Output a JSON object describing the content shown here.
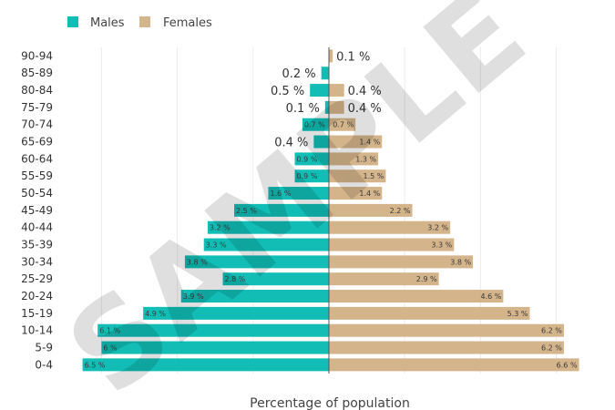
{
  "chart_data": {
    "type": "bar",
    "orientation": "horizontal",
    "title": "",
    "xlabel": "Percentage of population",
    "ylabel": "",
    "xlim": [
      -6.6,
      6.6
    ],
    "grid": true,
    "legend_position": "top-left",
    "categories": [
      "0-4",
      "5-9",
      "10-14",
      "15-19",
      "20-24",
      "25-29",
      "30-34",
      "35-39",
      "40-44",
      "45-49",
      "50-54",
      "55-59",
      "60-64",
      "65-69",
      "70-74",
      "75-79",
      "80-84",
      "85-89",
      "90-94"
    ],
    "series": [
      {
        "name": "Males",
        "color": "#12bdb6",
        "values": [
          6.5,
          6,
          6.1,
          4.9,
          3.9,
          2.8,
          3.8,
          3.3,
          3.2,
          2.5,
          1.6,
          0.9,
          0.9,
          0.4,
          0.7,
          0.1,
          0.5,
          0.2,
          0
        ],
        "labels": [
          "6.5 %",
          "6 %",
          "6.1 %",
          "4.9 %",
          "3.9 %",
          "2.8 %",
          "3.8 %",
          "3.3 %",
          "3.2 %",
          "2.5 %",
          "1.6 %",
          "0.9 %",
          "0.9 %",
          "0.4 %",
          "0.7 %",
          "0.1 %",
          "0.5 %",
          "0.2 %",
          ""
        ],
        "label_outside": [
          false,
          false,
          false,
          false,
          false,
          false,
          false,
          false,
          false,
          false,
          false,
          false,
          false,
          true,
          false,
          true,
          true,
          true,
          false
        ]
      },
      {
        "name": "Females",
        "color": "#d4b48a",
        "values": [
          6.6,
          6.2,
          6.2,
          5.3,
          4.6,
          2.9,
          3.8,
          3.3,
          3.2,
          2.2,
          1.4,
          1.5,
          1.3,
          1.4,
          0.7,
          0.4,
          0.4,
          0,
          0.1
        ],
        "labels": [
          "6.6 %",
          "6.2 %",
          "6.2 %",
          "5.3 %",
          "4.6 %",
          "2.9 %",
          "3.8 %",
          "3.3 %",
          "3.2 %",
          "2.2 %",
          "1.4 %",
          "1.5 %",
          "1.3 %",
          "1.4 %",
          "0.7 %",
          "0.4 %",
          "0.4 %",
          "",
          "0.1 %"
        ],
        "label_outside": [
          false,
          false,
          false,
          false,
          false,
          false,
          false,
          false,
          false,
          false,
          false,
          false,
          false,
          false,
          false,
          true,
          true,
          false,
          true
        ]
      }
    ]
  },
  "watermark": "SAMPLE"
}
